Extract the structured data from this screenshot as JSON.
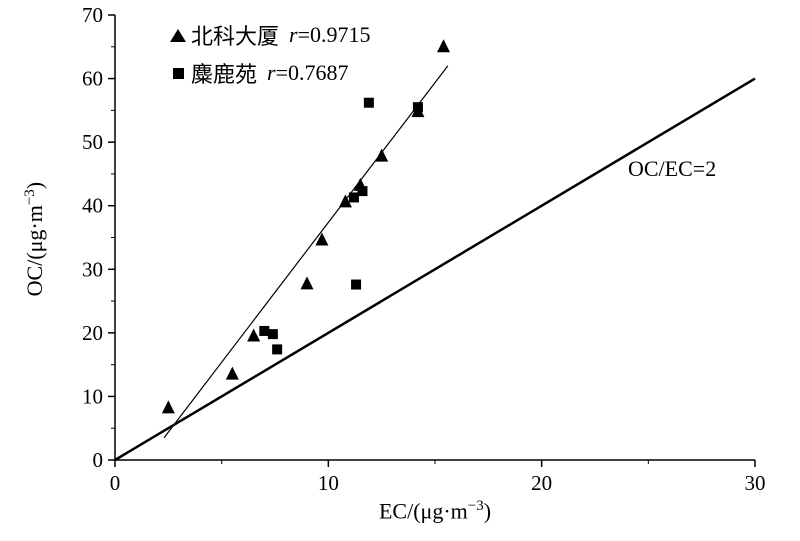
{
  "figure": {
    "background": "#ffffff",
    "ink_color": "#000000"
  },
  "chart_data": {
    "type": "scatter",
    "title": "",
    "xlabel": "EC/(μg·m⁻³)",
    "xlabel_parts": {
      "main": "EC/(μg·m",
      "sup": "−3",
      "end": ")"
    },
    "ylabel": "OC/(μg·m⁻³)",
    "ylabel_parts": {
      "main": "OC/(μg·m",
      "sup": "−3",
      "end": ")"
    },
    "xlim": [
      0,
      30
    ],
    "ylim": [
      0,
      70
    ],
    "xticks": [
      0,
      10,
      20,
      30
    ],
    "yticks": [
      0,
      10,
      20,
      30,
      40,
      50,
      60,
      70
    ],
    "xminor": [
      5,
      15,
      25
    ],
    "yminor": [
      5,
      15,
      25,
      35,
      45,
      55,
      65
    ],
    "grid": false,
    "legend_position": "top-left-inside",
    "series": [
      {
        "name": "北科大厦",
        "marker": "triangle",
        "r_var": "r",
        "r_value": "=0.9715",
        "points": [
          [
            2.5,
            8.2
          ],
          [
            5.5,
            13.5
          ],
          [
            6.5,
            19.5
          ],
          [
            9.0,
            27.7
          ],
          [
            9.7,
            34.6
          ],
          [
            10.8,
            40.6
          ],
          [
            11.5,
            43.2
          ],
          [
            12.5,
            47.8
          ],
          [
            14.2,
            54.8
          ],
          [
            15.4,
            65.0
          ]
        ]
      },
      {
        "name": "麋鹿苑",
        "marker": "square",
        "r_var": "r",
        "r_value": "=0.7687",
        "points": [
          [
            7.0,
            20.3
          ],
          [
            7.4,
            19.8
          ],
          [
            7.6,
            17.4
          ],
          [
            11.3,
            27.6
          ],
          [
            11.2,
            41.3
          ],
          [
            11.6,
            42.3
          ],
          [
            11.9,
            56.2
          ],
          [
            14.2,
            55.5
          ]
        ]
      }
    ],
    "fit_line": {
      "x1": 2.3,
      "y1": 3.5,
      "x2": 15.6,
      "y2": 62.0
    },
    "reference_line": {
      "x1": 0,
      "y1": 0,
      "x2": 30,
      "y2": 60,
      "label": "OC/EC=2"
    }
  }
}
